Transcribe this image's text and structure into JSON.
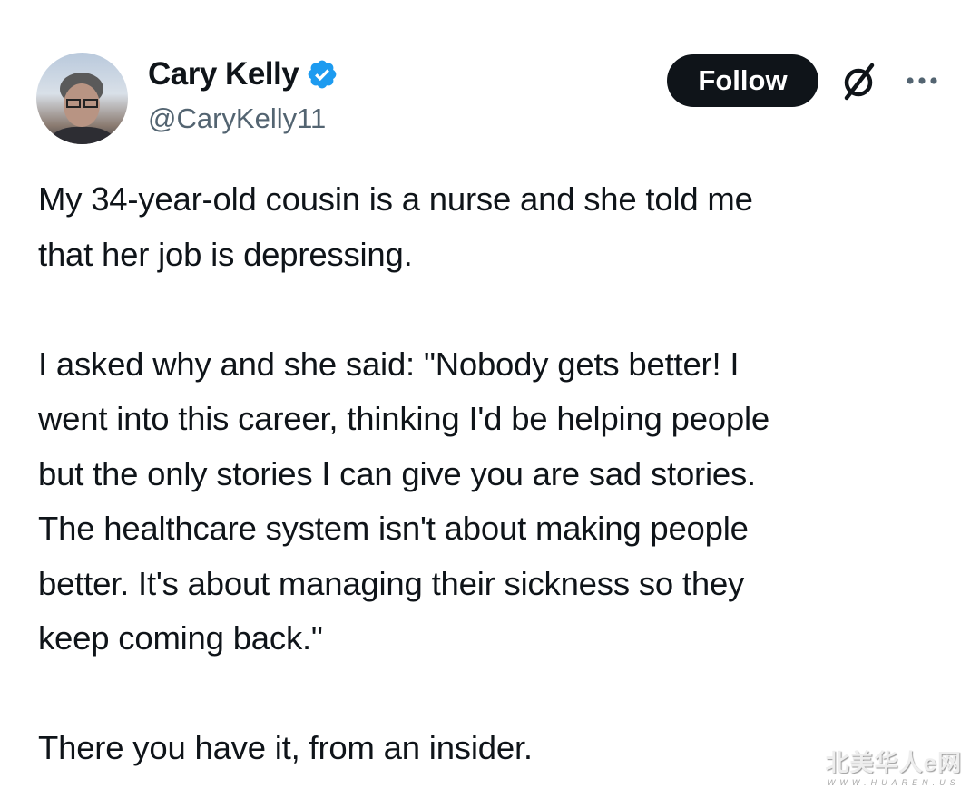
{
  "author": {
    "name": "Cary Kelly",
    "handle": "@CaryKelly11",
    "verified": true,
    "verified_color": "#1d9bf0"
  },
  "actions": {
    "follow_label": "Follow",
    "grok_icon": "grok-icon",
    "more_icon": "more-icon"
  },
  "tweet": {
    "paragraphs": [
      [
        "My 34-year-old cousin is a nurse and she told me",
        "that her job is depressing."
      ],
      [
        "I asked why and she said: \"Nobody gets better! I",
        "went into this career, thinking I'd be helping people",
        "but the only stories I can give you are sad stories.",
        "The healthcare system isn't about making people",
        "better. It's about managing their sickness so they",
        "keep coming back.\""
      ],
      [
        "There you have it, from an insider."
      ]
    ]
  },
  "watermark": {
    "title": "北美华人e网",
    "url": "WWW.HUAREN.US"
  }
}
